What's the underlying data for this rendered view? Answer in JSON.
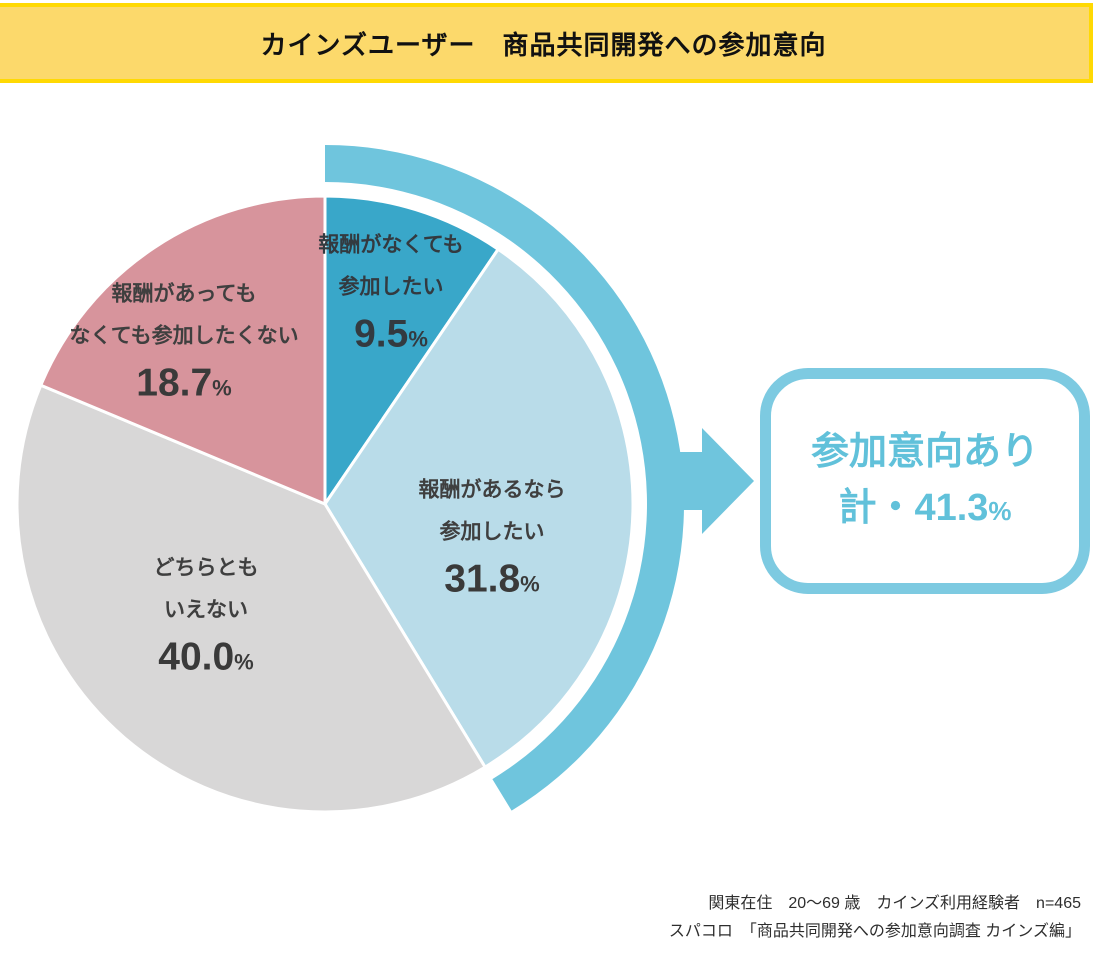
{
  "title": "カインズユーザー　商品共同開発への参加意向",
  "chart_data": {
    "type": "pie",
    "title": "カインズユーザー　商品共同開発への参加意向",
    "start_angle_deg_from_top": 0,
    "direction": "clockwise",
    "segments": [
      {
        "label_line1": "報酬がなくても",
        "label_line2": "参加したい",
        "value": 9.5,
        "display": "9.5",
        "color": "#39A7C9"
      },
      {
        "label_line1": "報酬があるなら",
        "label_line2": "参加したい",
        "value": 31.8,
        "display": "31.8",
        "color": "#B9DCE9"
      },
      {
        "label_line1": "どちらとも",
        "label_line2": "いえない",
        "value": 40.0,
        "display": "40.0",
        "color": "#D8D7D7"
      },
      {
        "label_line1": "報酬があっても",
        "label_line2": "なくても参加したくない",
        "value": 18.7,
        "display": "18.7",
        "color": "#D7949C"
      }
    ],
    "percent_symbol": "%",
    "highlight": {
      "segments": [
        0,
        1
      ],
      "total_value": 41.3,
      "note": "参加意向あり 計・41.3%"
    }
  },
  "callout": {
    "line1": "参加意向あり",
    "line2": "計・41.3",
    "percent_symbol": "%"
  },
  "footer": {
    "line1": "関東在住　20〜69 歳　カインズ利用経験者　n=465",
    "line2": "スパコロ　「商品共同開発への参加意向調査 カインズ編」"
  },
  "colors": {
    "title_bg": "#FCD96B",
    "title_border": "#FFD903",
    "highlight_arc": "#6FC5DD",
    "callout_border": "#7DCAE1",
    "callout_text": "#61C1DA",
    "slice_divider": "#FFFFFF",
    "label_text": "#3F3F3F"
  }
}
